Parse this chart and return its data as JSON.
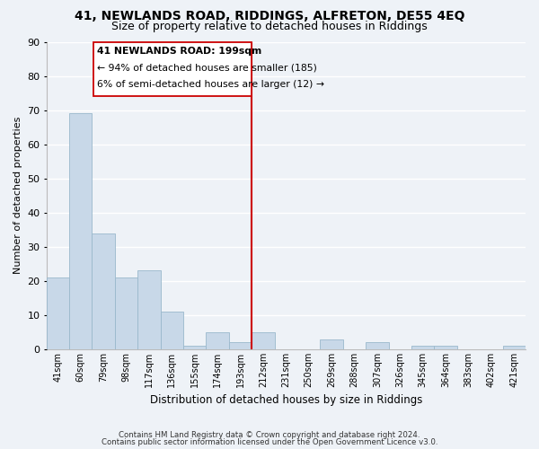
{
  "title": "41, NEWLANDS ROAD, RIDDINGS, ALFRETON, DE55 4EQ",
  "subtitle": "Size of property relative to detached houses in Riddings",
  "xlabel": "Distribution of detached houses by size in Riddings",
  "ylabel": "Number of detached properties",
  "categories": [
    "41sqm",
    "60sqm",
    "79sqm",
    "98sqm",
    "117sqm",
    "136sqm",
    "155sqm",
    "174sqm",
    "193sqm",
    "212sqm",
    "231sqm",
    "250sqm",
    "269sqm",
    "288sqm",
    "307sqm",
    "326sqm",
    "345sqm",
    "364sqm",
    "383sqm",
    "402sqm",
    "421sqm"
  ],
  "values": [
    21,
    69,
    34,
    21,
    23,
    11,
    1,
    5,
    2,
    5,
    0,
    0,
    3,
    0,
    2,
    0,
    1,
    1,
    0,
    0,
    1
  ],
  "bar_color": "#c8d8e8",
  "bar_edge_color": "#9ab8cc",
  "vline_color": "#cc0000",
  "box_color": "#cc0000",
  "ylim": [
    0,
    90
  ],
  "yticks": [
    0,
    10,
    20,
    30,
    40,
    50,
    60,
    70,
    80,
    90
  ],
  "footer_line1": "Contains HM Land Registry data © Crown copyright and database right 2024.",
  "footer_line2": "Contains public sector information licensed under the Open Government Licence v3.0.",
  "bg_color": "#eef2f7",
  "grid_color": "#ffffff",
  "anno_line1": "41 NEWLANDS ROAD: 199sqm",
  "anno_line2": "← 94% of detached houses are smaller (185)",
  "anno_line3": "6% of semi-detached houses are larger (12) →",
  "title_fontsize": 10,
  "subtitle_fontsize": 9
}
